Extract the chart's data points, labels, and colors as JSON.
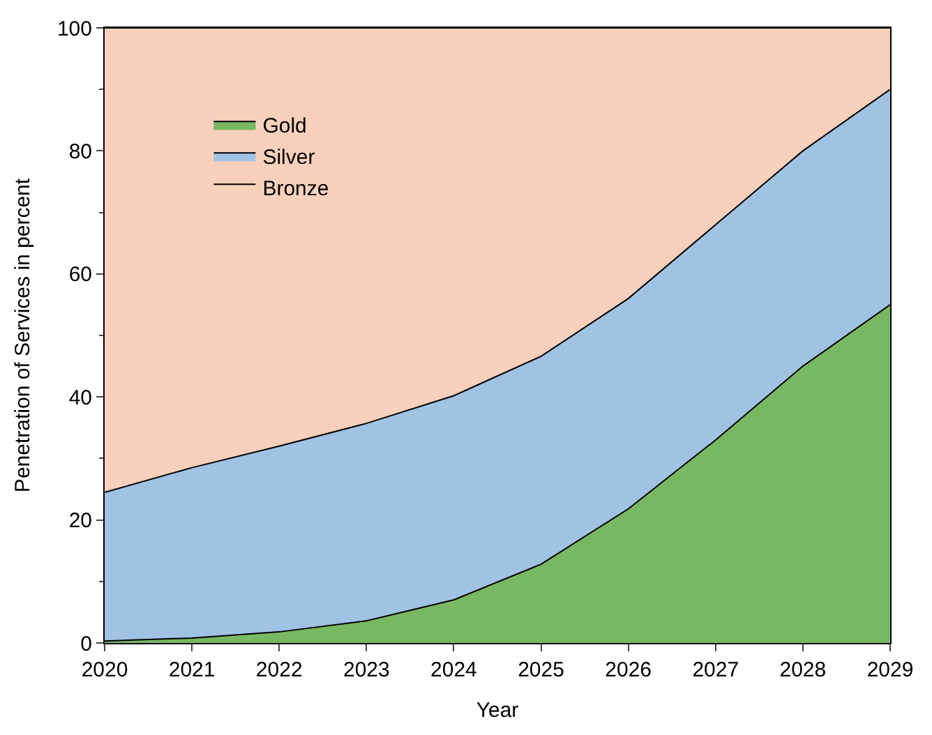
{
  "chart_data": {
    "type": "area",
    "stacked": true,
    "xlabel": "Year",
    "ylabel": "Penetration of Services in percent",
    "x": [
      2020,
      2021,
      2022,
      2023,
      2024,
      2025,
      2026,
      2027,
      2028,
      2029
    ],
    "series": [
      {
        "name": "Gold",
        "color": "#78b862",
        "values": [
          0.3,
          0.8,
          1.8,
          3.6,
          7,
          12.8,
          21.8,
          33,
          45,
          55
        ]
      },
      {
        "name": "Silver",
        "color": "#a0c3e3",
        "values": [
          24.2,
          27.7,
          30.2,
          32.1,
          33.2,
          33.8,
          34.2,
          35,
          35,
          35
        ]
      },
      {
        "name": "Bronze",
        "color": "#f9d0bb",
        "values": [
          75.5,
          71.5,
          68,
          64.3,
          59.8,
          53.4,
          44,
          32,
          20,
          10
        ]
      }
    ],
    "xlim": [
      2020,
      2029
    ],
    "xticks": [
      2020,
      2021,
      2022,
      2023,
      2024,
      2025,
      2026,
      2027,
      2028,
      2029
    ],
    "ylim": [
      0,
      100
    ],
    "yticks": [
      0,
      20,
      40,
      60,
      80,
      100
    ],
    "legend": "top left"
  }
}
